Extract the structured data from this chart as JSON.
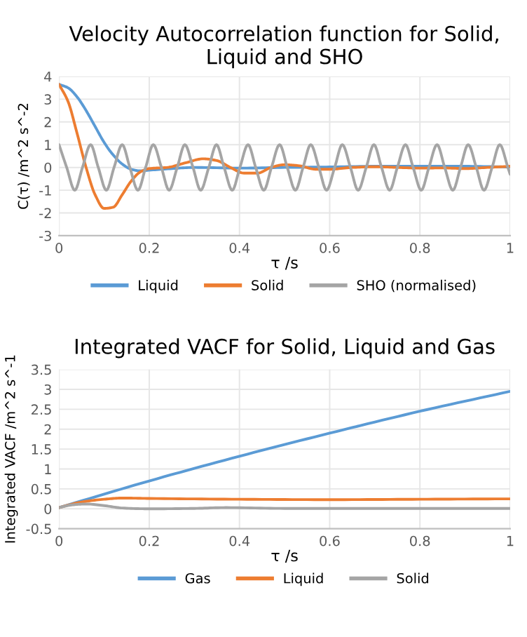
{
  "chart_data": [
    {
      "type": "line",
      "title": "Velocity Autocorrelation function for Solid, Liquid and SHO",
      "xlabel": "τ /s",
      "ylabel": "C(τ) /m^2 s^-2",
      "xlim": [
        0,
        1
      ],
      "xticks": [
        0,
        0.2,
        0.4,
        0.6,
        0.8,
        1
      ],
      "ylim": [
        -3,
        4
      ],
      "yticks": [
        -3,
        -2,
        -1,
        0,
        1,
        2,
        3,
        4
      ],
      "grid": true,
      "legend": "bottom",
      "series": [
        {
          "name": "Liquid",
          "color": "#5b9bd5",
          "x": [
            0,
            0.02,
            0.04,
            0.06,
            0.08,
            0.1,
            0.12,
            0.14,
            0.16,
            0.18,
            0.2,
            0.25,
            0.3,
            0.4,
            0.5,
            0.6,
            0.7,
            0.8,
            0.9,
            1.0
          ],
          "values": [
            3.65,
            3.5,
            3.1,
            2.5,
            1.8,
            1.1,
            0.55,
            0.15,
            -0.08,
            -0.15,
            -0.12,
            -0.05,
            0,
            -0.03,
            0,
            0.02,
            0.05,
            0.05,
            0.05,
            0.02
          ]
        },
        {
          "name": "Solid",
          "color": "#ed7d31",
          "x": [
            0,
            0.02,
            0.04,
            0.06,
            0.08,
            0.1,
            0.12,
            0.14,
            0.16,
            0.18,
            0.2,
            0.24,
            0.28,
            0.32,
            0.35,
            0.38,
            0.41,
            0.44,
            0.47,
            0.5,
            0.53,
            0.57,
            0.6,
            0.65,
            0.7,
            0.75,
            0.8,
            0.85,
            0.9,
            0.95,
            1.0
          ],
          "values": [
            3.65,
            2.9,
            1.5,
            0,
            -1.2,
            -1.8,
            -1.75,
            -1.2,
            -0.6,
            -0.2,
            -0.05,
            0,
            0.2,
            0.38,
            0.3,
            0,
            -0.25,
            -0.25,
            0,
            0.12,
            0.08,
            -0.08,
            -0.08,
            0,
            0.03,
            0,
            -0.03,
            -0.02,
            -0.05,
            0,
            0.05
          ]
        },
        {
          "name": "SHO (normalised)",
          "color": "#a5a5a5",
          "x": [
            0,
            0.017,
            0.035,
            0.052,
            0.07,
            0.087,
            0.105,
            0.122,
            0.14,
            0.157,
            0.175,
            0.192,
            0.209,
            0.227,
            0.244,
            0.262,
            0.279,
            0.297,
            0.314,
            0.332,
            0.349,
            0.366,
            0.384,
            0.401,
            0.419,
            0.436,
            0.454,
            0.471,
            0.489,
            0.506,
            0.524,
            0.541,
            0.558,
            0.576,
            0.593,
            0.611,
            0.628,
            0.646,
            0.663,
            0.681,
            0.698,
            0.715,
            0.733,
            0.75,
            0.768,
            0.785,
            0.803,
            0.82,
            0.838,
            0.855,
            0.873,
            0.89,
            0.907,
            0.925,
            0.942,
            0.96,
            0.977,
            0.995,
            1.0
          ],
          "values": [
            1,
            0,
            -1,
            0,
            1,
            0,
            -1,
            0,
            1,
            0,
            -1,
            0,
            1,
            0,
            -1,
            0,
            1,
            0,
            -1,
            0,
            1,
            0,
            -1,
            0,
            1,
            0,
            -1,
            0,
            1,
            0,
            -1,
            0,
            1,
            0,
            -1,
            0,
            1,
            0,
            -1,
            0,
            1,
            0,
            -1,
            0,
            1,
            0,
            -1,
            0,
            1,
            0,
            -1,
            0,
            1,
            0,
            -1,
            0,
            1,
            0,
            -0.3
          ]
        }
      ]
    },
    {
      "type": "line",
      "title": "Integrated VACF for Solid, Liquid and Gas",
      "xlabel": "τ /s",
      "ylabel": "Integrated VACF /m^2 s^-1",
      "xlim": [
        0,
        1
      ],
      "xticks": [
        0,
        0.2,
        0.4,
        0.6,
        0.8,
        1
      ],
      "ylim": [
        -0.5,
        3.5
      ],
      "yticks": [
        -0.5,
        0,
        0.5,
        1,
        1.5,
        2,
        2.5,
        3,
        3.5
      ],
      "grid": true,
      "legend": "bottom",
      "series": [
        {
          "name": "Gas",
          "color": "#5b9bd5",
          "x": [
            0,
            0.2,
            0.4,
            0.6,
            0.8,
            1.0
          ],
          "values": [
            0.03,
            0.7,
            1.32,
            1.9,
            2.45,
            2.95
          ]
        },
        {
          "name": "Liquid",
          "color": "#ed7d31",
          "x": [
            0,
            0.05,
            0.1,
            0.14,
            0.2,
            0.4,
            0.6,
            0.8,
            1.0
          ],
          "values": [
            0.03,
            0.17,
            0.24,
            0.27,
            0.26,
            0.24,
            0.23,
            0.24,
            0.25
          ]
        },
        {
          "name": "Solid",
          "color": "#a5a5a5",
          "x": [
            0,
            0.03,
            0.06,
            0.1,
            0.14,
            0.2,
            0.3,
            0.37,
            0.5,
            0.7,
            1.0
          ],
          "values": [
            0.03,
            0.1,
            0.12,
            0.08,
            0.02,
            0.0,
            0.01,
            0.03,
            0.01,
            0.01,
            0.01
          ]
        }
      ]
    }
  ]
}
